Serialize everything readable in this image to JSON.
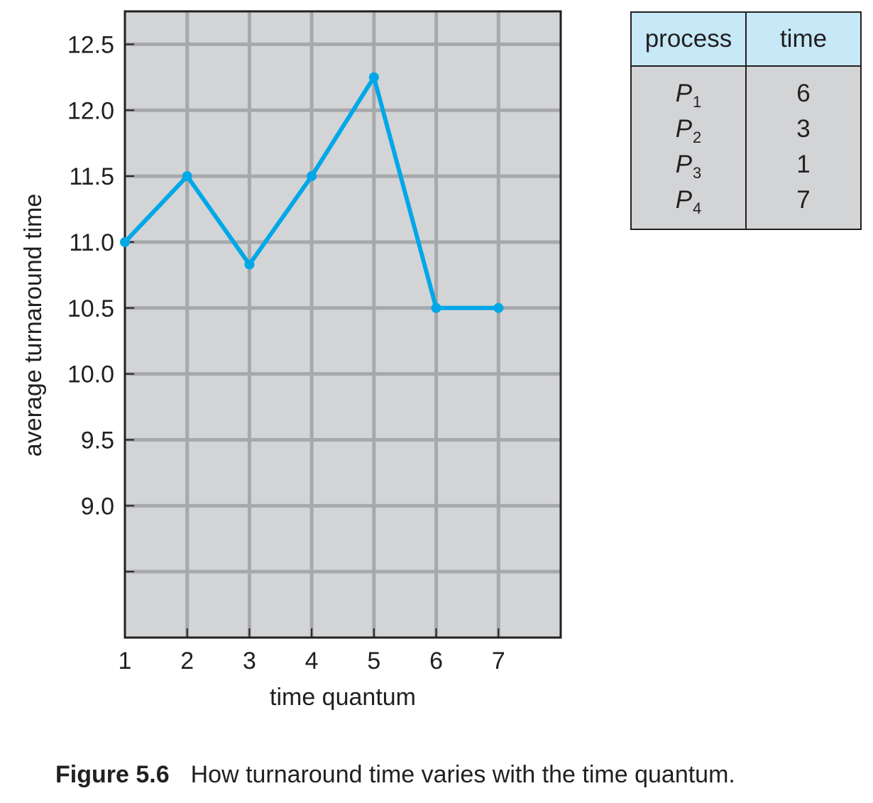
{
  "chart_data": {
    "type": "line",
    "title": "",
    "xlabel": "time quantum",
    "ylabel": "average turnaround time",
    "x": [
      1,
      2,
      3,
      4,
      5,
      6,
      7
    ],
    "series": [
      {
        "values": [
          11.0,
          11.5,
          10.83,
          11.5,
          12.25,
          10.5,
          10.5
        ]
      }
    ],
    "xlim": [
      1,
      8
    ],
    "ylim": [
      8,
      12.75
    ],
    "xticks": [
      "1",
      "2",
      "3",
      "4",
      "5",
      "6",
      "7"
    ],
    "yticks": [
      9.0,
      9.5,
      10.0,
      10.5,
      11.0,
      11.5,
      12.0,
      12.5
    ],
    "ytick_labels": [
      "9.0",
      "9.5",
      "10.0",
      "10.5",
      "11.0",
      "11.5",
      "12.0",
      "12.5"
    ],
    "grid": true,
    "colors": {
      "line": "#00a8e8",
      "plot_background": "#d3d4d6",
      "grid": "#a6a8ab",
      "axis": "#231f20"
    }
  },
  "process_table": {
    "headers": {
      "process": "process",
      "time": "time"
    },
    "rows": [
      {
        "name": "P",
        "sub": "1",
        "time": "6"
      },
      {
        "name": "P",
        "sub": "2",
        "time": "3"
      },
      {
        "name": "P",
        "sub": "3",
        "time": "1"
      },
      {
        "name": "P",
        "sub": "4",
        "time": "7"
      }
    ],
    "colors": {
      "header_background": "#c6e8f7",
      "body_background": "#d3d4d6"
    }
  },
  "caption": {
    "label": "Figure 5.6",
    "text": "How turnaround time varies with the time quantum."
  }
}
